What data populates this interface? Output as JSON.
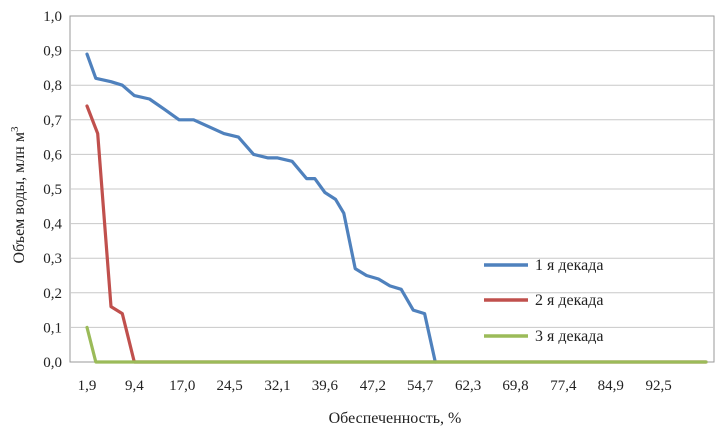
{
  "chart_data": {
    "type": "line",
    "xlabel": "Обеспеченность, %",
    "ylabel": "Объем воды, млн м",
    "ylabel_superscript": "3",
    "ylim": [
      0,
      1
    ],
    "y_ticks": [
      "0,0",
      "0,1",
      "0,2",
      "0,3",
      "0,4",
      "0,5",
      "0,6",
      "0,7",
      "0,8",
      "0,9",
      "1,0"
    ],
    "x_ticks": [
      "1,9",
      "9,4",
      "17,0",
      "24,5",
      "32,1",
      "39,6",
      "47,2",
      "54,7",
      "62,3",
      "69,8",
      "77,4",
      "84,9",
      "92,5"
    ],
    "grid": "horizontal",
    "legend_position": "right",
    "series": [
      {
        "name": "1 я декада",
        "color": "#4f81bd",
        "x": [
          1.9,
          3.3,
          5.7,
          7.5,
          9.4,
          11.8,
          14.2,
          16.5,
          18.8,
          21.2,
          23.6,
          25.9,
          28.3,
          30.6,
          32.1,
          34.4,
          36.7,
          38.0,
          39.6,
          41.3,
          42.6,
          44.4,
          46.2,
          48.1,
          49.9,
          51.7,
          53.6,
          55.4,
          57.1
        ],
        "values": [
          0.89,
          0.82,
          0.81,
          0.8,
          0.77,
          0.76,
          0.73,
          0.7,
          0.7,
          0.68,
          0.66,
          0.65,
          0.6,
          0.59,
          0.59,
          0.58,
          0.53,
          0.53,
          0.49,
          0.47,
          0.43,
          0.27,
          0.25,
          0.24,
          0.22,
          0.21,
          0.15,
          0.14,
          0.0
        ]
      },
      {
        "name": "2 я декада",
        "color": "#c0504d",
        "x": [
          1.9,
          3.6,
          5.7,
          7.5,
          9.4,
          11.8,
          14.2,
          16.5,
          20.0,
          30.0,
          40.0,
          50.0,
          60.0,
          70.0,
          80.0,
          90.0,
          100.0
        ],
        "values": [
          0.74,
          0.66,
          0.16,
          0.14,
          0.0,
          0.0,
          0.0,
          0.0,
          0.0,
          0.0,
          0.0,
          0.0,
          0.0,
          0.0,
          0.0,
          0.0,
          0.0
        ]
      },
      {
        "name": "3 я декада",
        "color": "#9bbb59",
        "x": [
          1.9,
          3.3,
          9.4,
          17.0,
          24.5,
          32.1,
          39.6,
          47.2,
          54.7,
          62.3,
          69.8,
          77.4,
          84.9,
          92.5,
          100.0
        ],
        "values": [
          0.1,
          0.0,
          0.0,
          0.0,
          0.0,
          0.0,
          0.0,
          0.0,
          0.0,
          0.0,
          0.0,
          0.0,
          0.0,
          0.0,
          0.0
        ]
      }
    ]
  }
}
